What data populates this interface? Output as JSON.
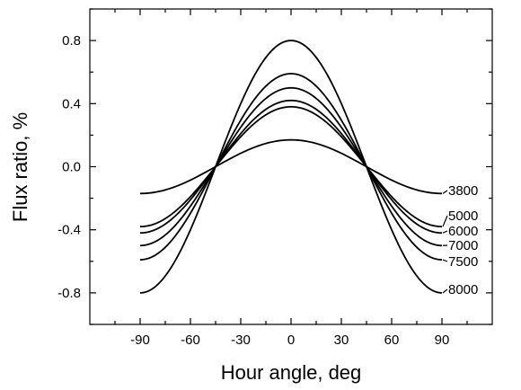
{
  "chart_data": {
    "type": "line",
    "title": "",
    "xlabel": "Hour angle, deg",
    "ylabel": "Flux ratio, %",
    "xlim": [
      -120,
      120
    ],
    "ylim": [
      -1.0,
      1.0
    ],
    "xticks": [
      -90,
      -60,
      -30,
      0,
      30,
      60,
      90
    ],
    "yticks": [
      -0.8,
      -0.4,
      0.0,
      0.4,
      0.8
    ],
    "xtick_labels": [
      "-90",
      "-60",
      "-30",
      "0",
      "30",
      "60",
      "90"
    ],
    "ytick_labels": [
      "-0.8",
      "-0.4",
      "0.0",
      "0.4",
      "0.8"
    ],
    "grid": false,
    "legend": "none",
    "x_range": [
      -90,
      90
    ],
    "series": [
      {
        "name": "3800",
        "amplitude": 0.17
      },
      {
        "name": "5000",
        "amplitude": 0.38
      },
      {
        "name": "6000",
        "amplitude": 0.42
      },
      {
        "name": "7000",
        "amplitude": 0.5
      },
      {
        "name": "7500",
        "amplitude": 0.59
      },
      {
        "name": "8000",
        "amplitude": 0.8
      }
    ]
  }
}
